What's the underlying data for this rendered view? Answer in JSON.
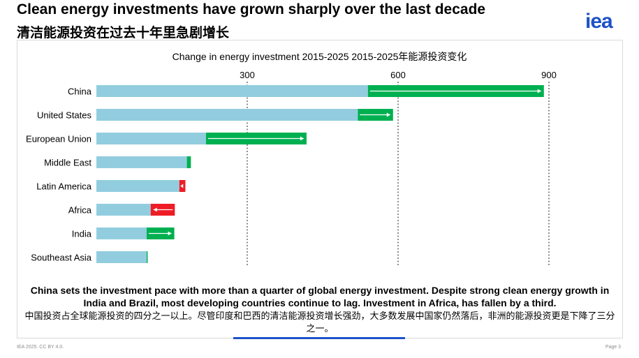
{
  "header": {
    "title_en": "Clean energy investments have grown sharply over the last decade",
    "title_zh": "清洁能源投资在过去十年里急剧增长",
    "logo_text": "iea"
  },
  "chart_data": {
    "type": "bar",
    "title": "Change in energy investment 2015-2025 2015-2025年能源投资变化",
    "categories": [
      "China",
      "United States",
      "European Union",
      "Middle East",
      "Latin America",
      "Africa",
      "India",
      "Southeast Asia"
    ],
    "series": [
      {
        "values": [
          540,
          520,
          218,
          180,
          165,
          108,
          100,
          100
        ]
      },
      {
        "values": [
          350,
          70,
          200,
          8,
          12,
          48,
          55,
          2
        ]
      }
    ],
    "change_direction": [
      "increase",
      "increase",
      "increase",
      "increase",
      "decrease",
      "decrease",
      "increase",
      "increase"
    ],
    "xticks": [
      300,
      600,
      900
    ],
    "xlim": [
      0,
      900
    ],
    "grid": true,
    "colors": {
      "base": "#92cddf",
      "increase": "#00b050",
      "decrease": "#ee1c25",
      "grid": "#444444"
    }
  },
  "takeaway": {
    "en": "China sets the investment pace with more than a quarter of global energy investment. Despite strong clean energy growth in India and Brazil, most developing countries continue to lag. Investment in Africa, has fallen by a third.",
    "zh": "中国投资占全球能源投资的四分之一以上。尽管印度和巴西的清洁能源投资增长强劲，大多数发展中国家仍然落后，非洲的能源投资更是下降了三分之一。"
  },
  "footer": {
    "left": "IEA 2025. CC BY 4.0.",
    "right": "Page 3"
  }
}
